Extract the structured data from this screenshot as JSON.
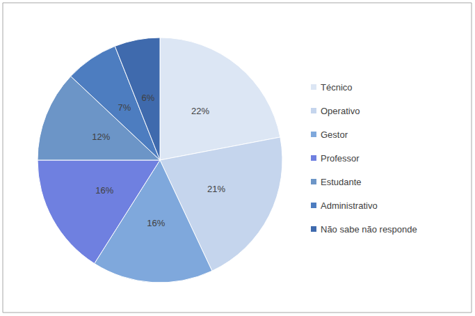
{
  "chart_data": {
    "type": "pie",
    "categories": [
      "Técnico",
      "Operativo",
      "Gestor",
      "Professor",
      "Estudante",
      "Administrativo",
      "Não sabe não responde"
    ],
    "values": [
      22,
      21,
      16,
      16,
      12,
      7,
      6
    ],
    "value_labels": [
      "22%",
      "21%",
      "16%",
      "16%",
      "12%",
      "7%",
      "6%"
    ],
    "colors": [
      "#dce6f4",
      "#c5d5ed",
      "#7fa8dc",
      "#6f80e0",
      "#6c95c7",
      "#4d7dc0",
      "#3f6aad"
    ],
    "data_labels": true,
    "legend": "right"
  }
}
